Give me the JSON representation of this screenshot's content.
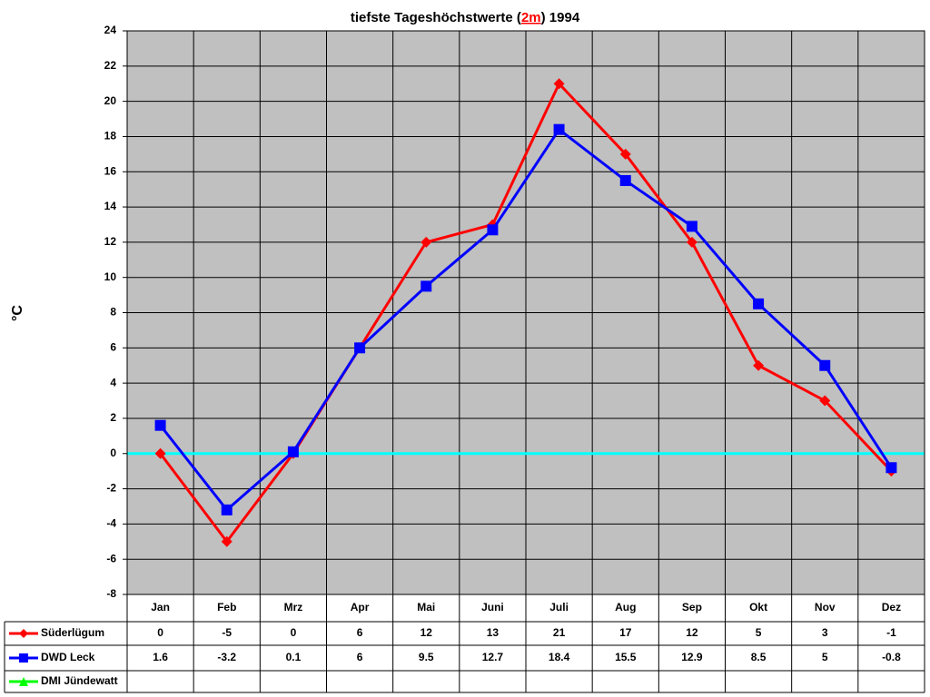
{
  "chart_data": {
    "type": "line",
    "title_parts": [
      "tiefste Tageshöchstwerte (",
      "2m",
      ") 1994"
    ],
    "title_highlight_color": "#ff0000",
    "y_label": "°C",
    "categories": [
      "Jan",
      "Feb",
      "Mrz",
      "Apr",
      "Mai",
      "Juni",
      "Juli",
      "Aug",
      "Sep",
      "Okt",
      "Nov",
      "Dez"
    ],
    "series": [
      {
        "name": "Süderlügum",
        "color": "#ff0000",
        "marker": "diamond",
        "values": [
          0,
          -5,
          0,
          6,
          12,
          13,
          21,
          17,
          12,
          5,
          3,
          -1
        ]
      },
      {
        "name": "DWD Leck",
        "color": "#0000ff",
        "marker": "square",
        "values": [
          1.6,
          -3.2,
          0.1,
          6,
          9.5,
          12.7,
          18.4,
          15.5,
          12.9,
          8.5,
          5,
          -0.8
        ]
      },
      {
        "name": "DMI Jündewatt",
        "color": "#00ff00",
        "marker": "triangle",
        "values": [
          null,
          null,
          null,
          null,
          null,
          null,
          null,
          null,
          null,
          null,
          null,
          null
        ]
      }
    ],
    "ylim": [
      -8,
      24
    ],
    "yticks": [
      -8,
      -6,
      -4,
      -2,
      0,
      2,
      4,
      6,
      8,
      10,
      12,
      14,
      16,
      18,
      20,
      22,
      24
    ],
    "grid": true,
    "plot_background": "#c0c0c0",
    "zero_line_color": "#00ffff",
    "data_table": true
  }
}
